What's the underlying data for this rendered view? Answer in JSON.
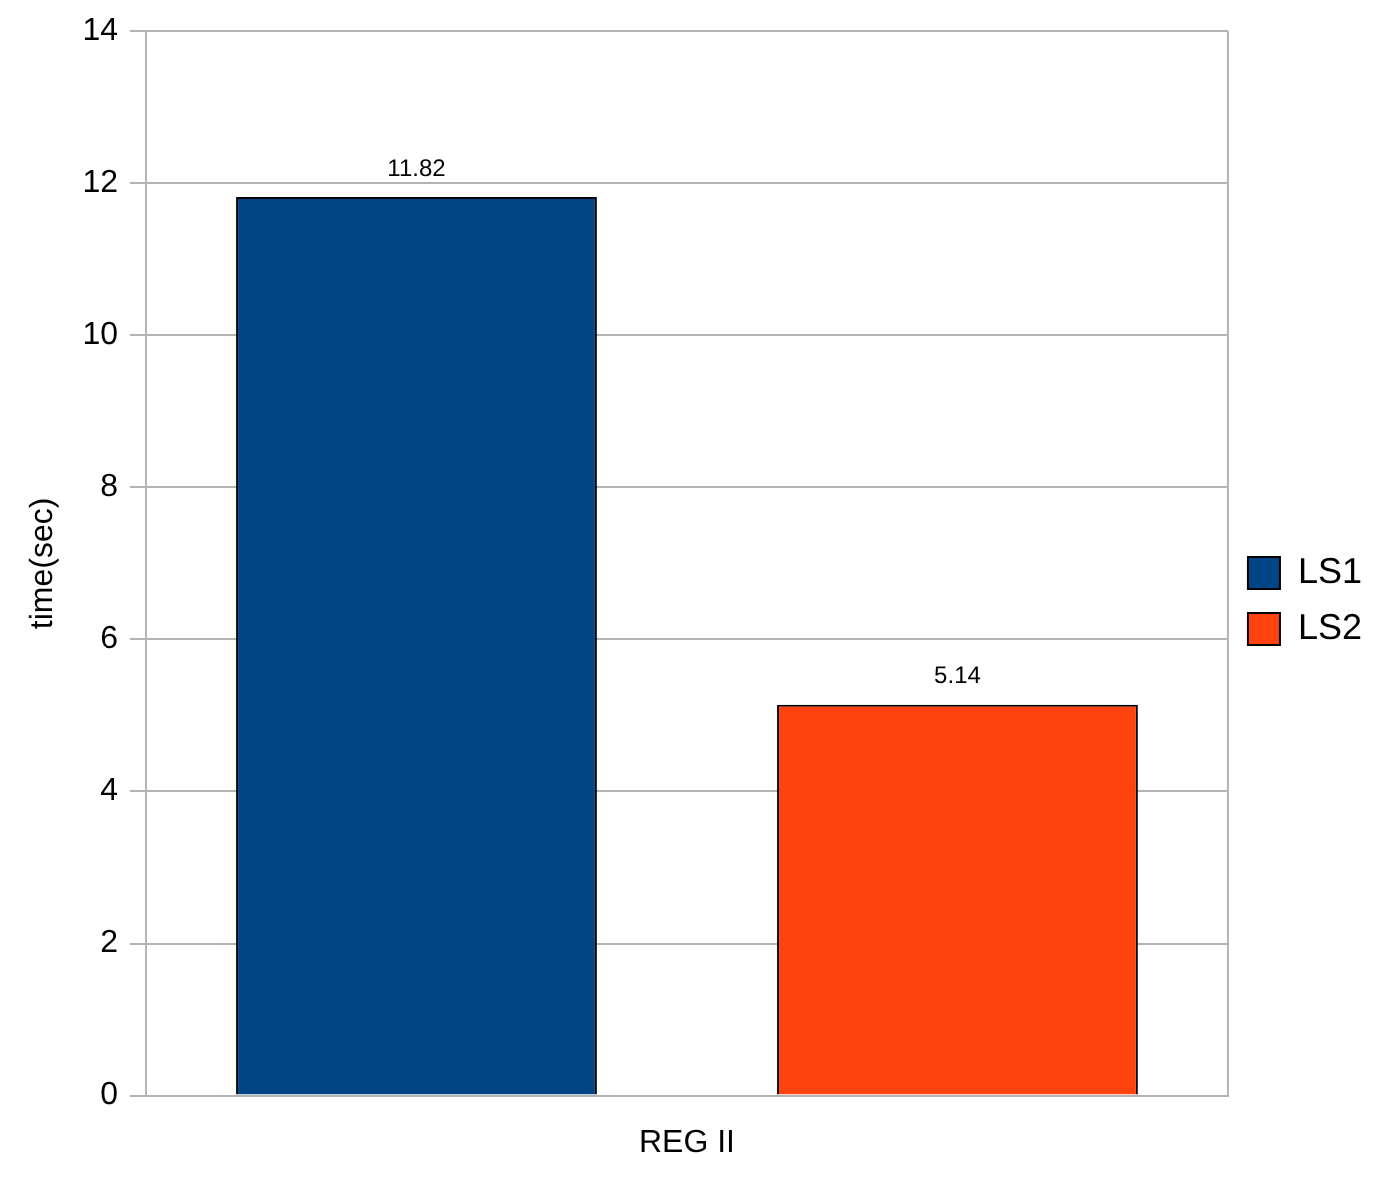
{
  "chart_data": {
    "type": "bar",
    "categories": [
      "REG II"
    ],
    "ylabel": "time(sec)",
    "series": [
      {
        "name": "LS1",
        "color": "#004586",
        "values": [
          11.82
        ]
      },
      {
        "name": "LS2",
        "color": "#ff420e",
        "values": [
          5.14
        ]
      }
    ],
    "ylim": [
      0,
      14
    ],
    "yticks": [
      0,
      2,
      4,
      6,
      8,
      10,
      12,
      14
    ],
    "grid": "y",
    "legend": "right",
    "data_labels": true
  }
}
